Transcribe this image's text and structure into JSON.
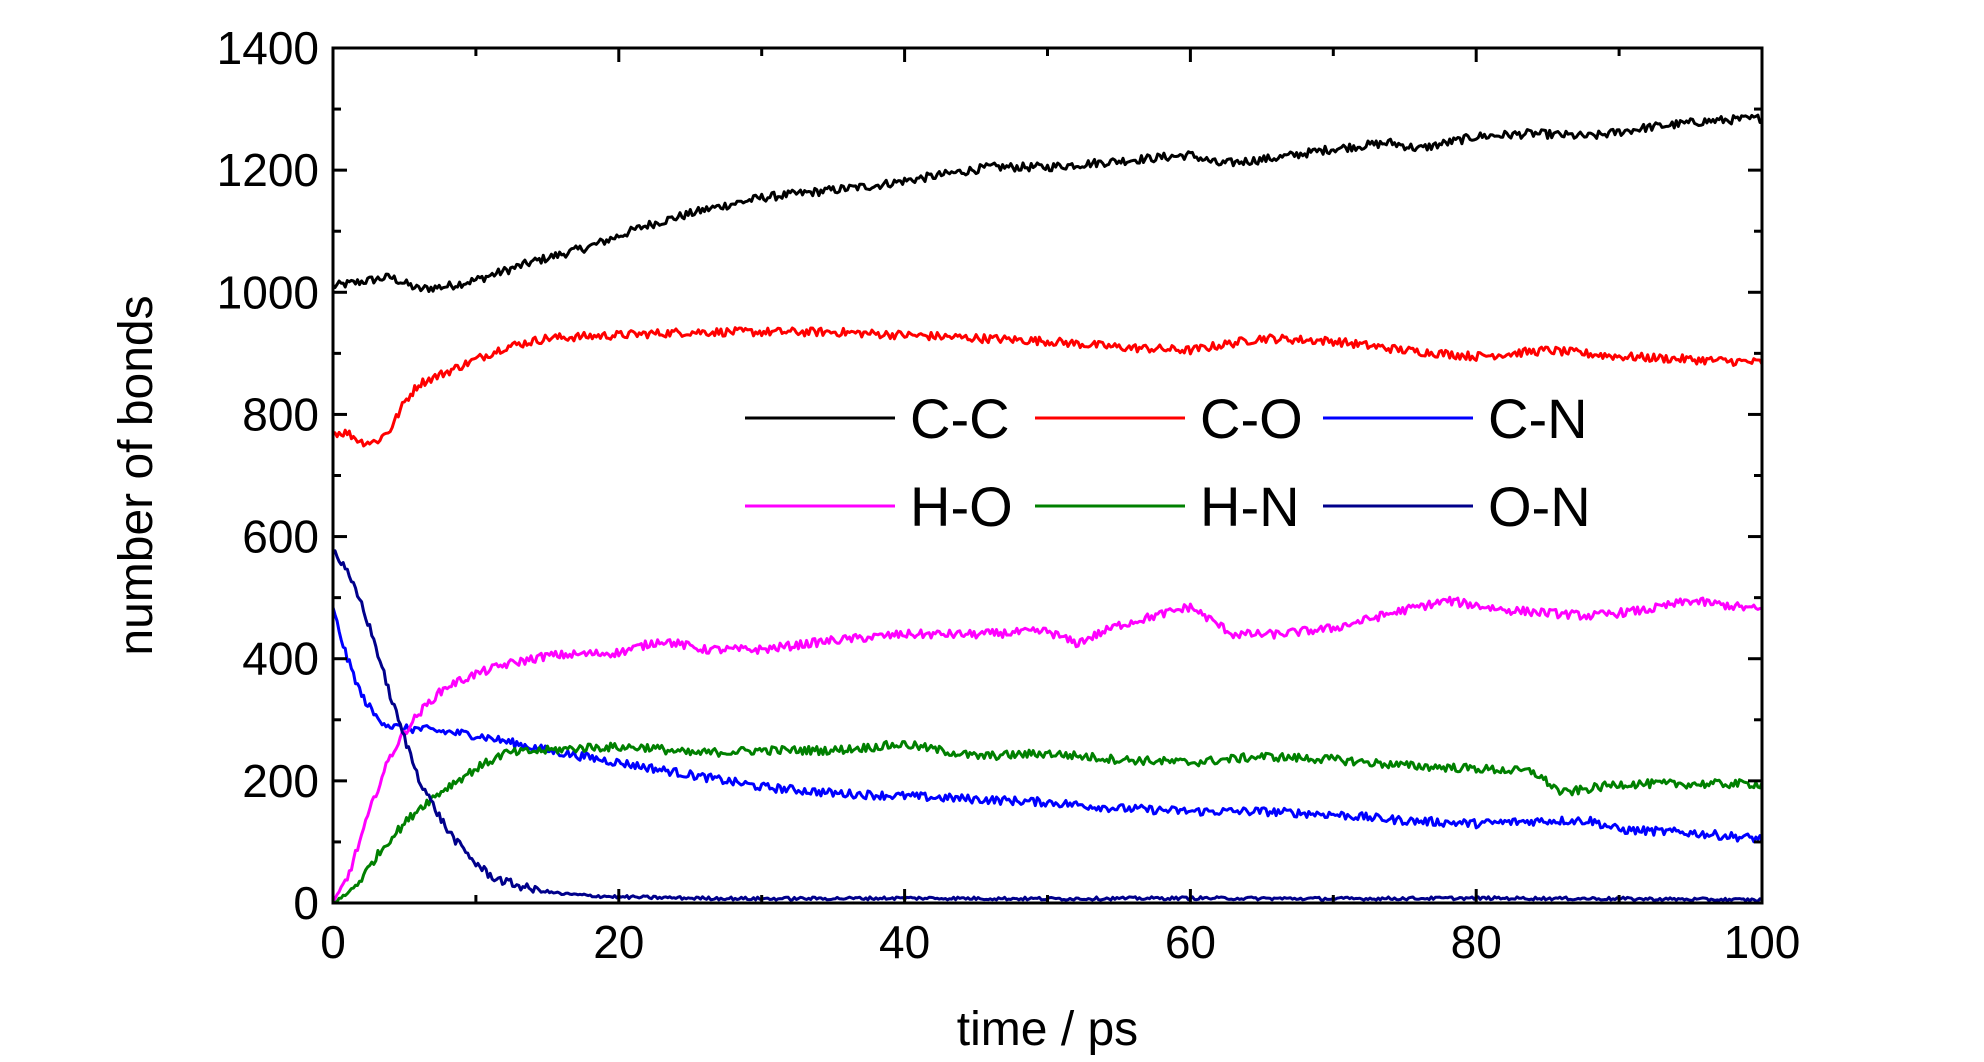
{
  "chart_data": {
    "type": "line",
    "title": "",
    "xlabel": "time / ps",
    "ylabel": "number of bonds",
    "xlim": [
      0,
      100
    ],
    "ylim": [
      0,
      1400
    ],
    "xticks": [
      0,
      20,
      40,
      60,
      80,
      100
    ],
    "yticks": [
      0,
      200,
      400,
      600,
      800,
      1000,
      1200,
      1400
    ],
    "grid": false,
    "legend": {
      "placement": "center-right",
      "columns": 3
    },
    "series": [
      {
        "name": "C-C",
        "color": "#000000",
        "x": [
          0,
          4,
          6,
          8,
          10,
          14,
          18,
          22,
          26,
          30,
          34,
          38,
          42,
          46,
          50,
          55,
          60,
          62,
          66,
          70,
          74,
          76,
          80,
          84,
          88,
          92,
          96,
          100
        ],
        "y": [
          1010,
          1025,
          1005,
          1010,
          1020,
          1050,
          1075,
          1110,
          1135,
          1155,
          1165,
          1175,
          1190,
          1205,
          1205,
          1215,
          1225,
          1210,
          1220,
          1235,
          1245,
          1235,
          1255,
          1260,
          1255,
          1270,
          1280,
          1285
        ]
      },
      {
        "name": "C-O",
        "color": "#ff0000",
        "x": [
          0,
          1,
          2,
          3,
          4,
          5,
          6,
          8,
          10,
          12,
          15,
          20,
          25,
          30,
          35,
          40,
          45,
          50,
          55,
          60,
          65,
          70,
          75,
          80,
          85,
          90,
          95,
          100
        ],
        "y": [
          770,
          770,
          755,
          755,
          775,
          820,
          850,
          870,
          890,
          910,
          925,
          930,
          935,
          935,
          935,
          930,
          925,
          920,
          910,
          905,
          925,
          920,
          905,
          895,
          905,
          895,
          890,
          885
        ]
      },
      {
        "name": "C-N",
        "color": "#0000ff",
        "x": [
          0,
          1,
          2,
          3,
          4,
          5,
          6,
          8,
          10,
          12,
          15,
          20,
          25,
          30,
          35,
          40,
          45,
          50,
          55,
          60,
          65,
          70,
          75,
          80,
          85,
          88,
          90,
          95,
          100
        ],
        "y": [
          480,
          400,
          340,
          305,
          290,
          285,
          285,
          280,
          275,
          265,
          250,
          230,
          210,
          190,
          180,
          175,
          170,
          165,
          155,
          150,
          150,
          145,
          135,
          130,
          135,
          135,
          120,
          115,
          105
        ]
      },
      {
        "name": "H-O",
        "color": "#ff00ff",
        "x": [
          0,
          1,
          2,
          3,
          4,
          5,
          6,
          7,
          8,
          10,
          12,
          15,
          20,
          23,
          26,
          30,
          35,
          40,
          45,
          50,
          52,
          55,
          60,
          63,
          66,
          70,
          75,
          78,
          82,
          85,
          88,
          92,
          95,
          100
        ],
        "y": [
          0,
          40,
          110,
          180,
          240,
          280,
          310,
          335,
          355,
          375,
          390,
          405,
          410,
          430,
          415,
          415,
          430,
          440,
          440,
          445,
          425,
          455,
          485,
          440,
          440,
          450,
          480,
          495,
          480,
          475,
          470,
          480,
          495,
          480
        ]
      },
      {
        "name": "H-N",
        "color": "#008000",
        "x": [
          0,
          1,
          2,
          3,
          4,
          5,
          6,
          8,
          10,
          12,
          15,
          18,
          22,
          25,
          30,
          35,
          40,
          45,
          50,
          55,
          60,
          65,
          70,
          75,
          80,
          84,
          86,
          90,
          95,
          100
        ],
        "y": [
          0,
          15,
          40,
          75,
          105,
          130,
          155,
          190,
          220,
          245,
          250,
          255,
          255,
          245,
          250,
          250,
          260,
          240,
          245,
          235,
          230,
          240,
          235,
          225,
          220,
          215,
          180,
          195,
          195,
          195
        ]
      },
      {
        "name": "O-N",
        "color": "#00008b",
        "x": [
          0,
          1,
          2,
          3,
          4,
          5,
          6,
          7,
          8,
          9,
          10,
          11,
          12,
          14,
          16,
          18,
          20,
          25,
          30,
          40,
          50,
          60,
          70,
          80,
          90,
          100
        ],
        "y": [
          580,
          540,
          490,
          420,
          340,
          270,
          205,
          160,
          120,
          90,
          65,
          45,
          35,
          22,
          15,
          12,
          10,
          8,
          7,
          8,
          7,
          8,
          7,
          8,
          7,
          5
        ]
      }
    ]
  }
}
